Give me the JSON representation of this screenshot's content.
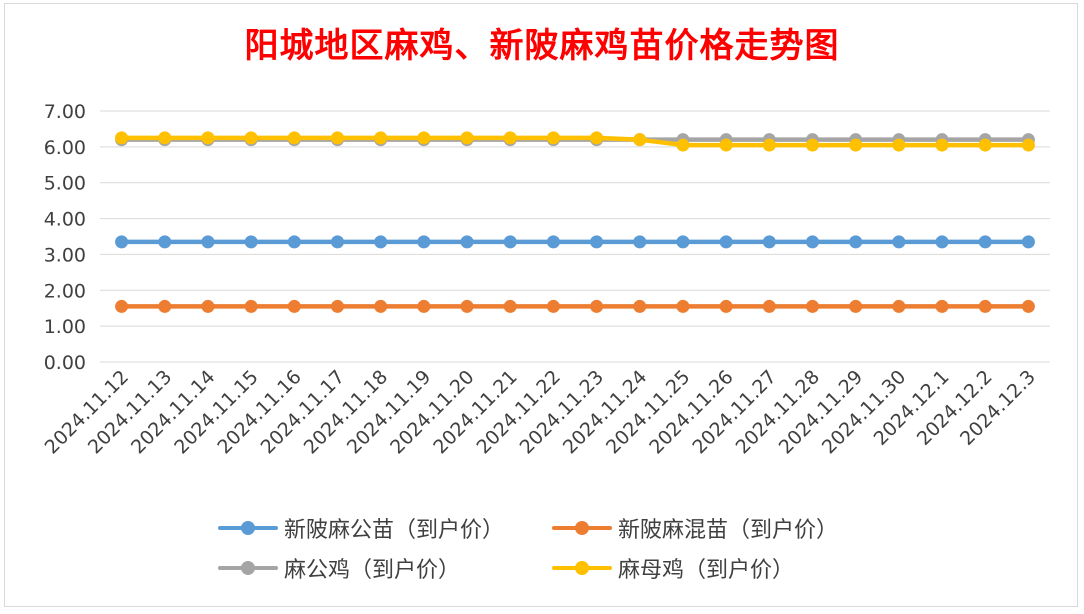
{
  "title": "阳城地区麻鸡、新陂麻鸡苗价格走势图",
  "chart_data": {
    "type": "line",
    "title": "阳城地区麻鸡、新陂麻鸡苗价格走势图",
    "xlabel": "",
    "ylabel": "",
    "ylim": [
      0,
      7
    ],
    "ytick_step": 1,
    "ytick_labels": [
      "0.00",
      "1.00",
      "2.00",
      "3.00",
      "4.00",
      "5.00",
      "6.00",
      "7.00"
    ],
    "grid": true,
    "legend_position": "bottom",
    "categories": [
      "2024.11.12",
      "2024.11.13",
      "2024.11.14",
      "2024.11.15",
      "2024.11.16",
      "2024.11.17",
      "2024.11.18",
      "2024.11.19",
      "2024.11.20",
      "2024.11.21",
      "2024.11.22",
      "2024.11.23",
      "2024.11.24",
      "2024.11.25",
      "2024.11.26",
      "2024.11.27",
      "2024.11.28",
      "2024.11.29",
      "2024.11.30",
      "2024.12.1",
      "2024.12.2",
      "2024.12.3"
    ],
    "series": [
      {
        "name": "新陂麻公苗（到户价）",
        "color": "#5b9bd5",
        "values": [
          3.35,
          3.35,
          3.35,
          3.35,
          3.35,
          3.35,
          3.35,
          3.35,
          3.35,
          3.35,
          3.35,
          3.35,
          3.35,
          3.35,
          3.35,
          3.35,
          3.35,
          3.35,
          3.35,
          3.35,
          3.35,
          3.35
        ]
      },
      {
        "name": "新陂麻混苗（到户价）",
        "color": "#ed7d31",
        "values": [
          1.55,
          1.55,
          1.55,
          1.55,
          1.55,
          1.55,
          1.55,
          1.55,
          1.55,
          1.55,
          1.55,
          1.55,
          1.55,
          1.55,
          1.55,
          1.55,
          1.55,
          1.55,
          1.55,
          1.55,
          1.55,
          1.55
        ]
      },
      {
        "name": "麻公鸡（到户价）",
        "color": "#a5a5a5",
        "values": [
          6.2,
          6.2,
          6.2,
          6.2,
          6.2,
          6.2,
          6.2,
          6.2,
          6.2,
          6.2,
          6.2,
          6.2,
          6.2,
          6.2,
          6.2,
          6.2,
          6.2,
          6.2,
          6.2,
          6.2,
          6.2,
          6.2
        ]
      },
      {
        "name": "麻母鸡（到户价）",
        "color": "#ffc000",
        "values": [
          6.25,
          6.25,
          6.25,
          6.25,
          6.25,
          6.25,
          6.25,
          6.25,
          6.25,
          6.25,
          6.25,
          6.25,
          6.2,
          6.05,
          6.05,
          6.05,
          6.05,
          6.05,
          6.05,
          6.05,
          6.05,
          6.05
        ]
      }
    ]
  }
}
